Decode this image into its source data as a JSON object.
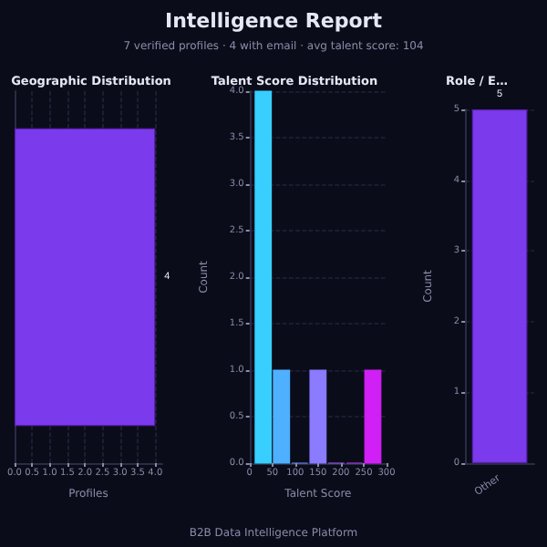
{
  "chart_data": [
    {
      "type": "other",
      "title": "Intelligence Report",
      "subtitle": "7 verified profiles · 4 with email · avg talent score: 104",
      "annotations": [
        "B2B Data Intelligence Platform"
      ]
    },
    {
      "type": "bar",
      "orientation": "horizontal",
      "title": "Geographic Distribution",
      "xlabel": "Profiles",
      "categories": [
        null
      ],
      "values": [
        4
      ],
      "color": "#7c3aed",
      "data_labels": true,
      "xlim": [
        0,
        4.2
      ],
      "xticks": [
        {
          "value": 0,
          "label": "0.0"
        },
        {
          "value": 0.5,
          "label": "0.5"
        },
        {
          "value": 1,
          "label": "1.0"
        },
        {
          "value": 1.5,
          "label": "1.5"
        },
        {
          "value": 2,
          "label": "2.0"
        },
        {
          "value": 2.5,
          "label": "2.5"
        },
        {
          "value": 3,
          "label": "3.0"
        },
        {
          "value": 3.5,
          "label": "3.5"
        },
        {
          "value": 4,
          "label": "4.0"
        }
      ],
      "grid": "x"
    },
    {
      "type": "histogram",
      "title": "Talent Score Distribution",
      "xlabel": "Talent Score",
      "ylabel": "Count",
      "bins": [
        10,
        50,
        90,
        130,
        170,
        210,
        250,
        290
      ],
      "values": [
        4,
        1,
        0,
        1,
        0,
        0,
        1
      ],
      "colors": [
        "#38cfff",
        "#4fb0ff",
        "#6f95ff",
        "#8a7bff",
        "#a760ff",
        "#bd40fa",
        "#d020f5"
      ],
      "xlim": [
        0,
        300
      ],
      "xticks": [
        0,
        50,
        100,
        150,
        200,
        250,
        300
      ],
      "ylim": [
        0,
        4
      ],
      "yticks": [
        {
          "value": 0,
          "label": "0.0"
        },
        {
          "value": 0.5,
          "label": "0.5"
        },
        {
          "value": 1,
          "label": "1.0"
        },
        {
          "value": 1.5,
          "label": "1.5"
        },
        {
          "value": 2,
          "label": "2.0"
        },
        {
          "value": 2.5,
          "label": "2.5"
        },
        {
          "value": 3,
          "label": "3.0"
        },
        {
          "value": 3.5,
          "label": "3.5"
        },
        {
          "value": 4,
          "label": "4.0"
        }
      ],
      "grid": "y"
    },
    {
      "type": "bar",
      "title": "Role / E…",
      "ylabel": "Count",
      "categories": [
        "Other"
      ],
      "values": [
        5
      ],
      "color": "#7c3aed",
      "data_labels": true,
      "ylim": [
        0,
        5
      ],
      "yticks": [
        0,
        1,
        2,
        3,
        4,
        5
      ],
      "grid": "y"
    }
  ]
}
